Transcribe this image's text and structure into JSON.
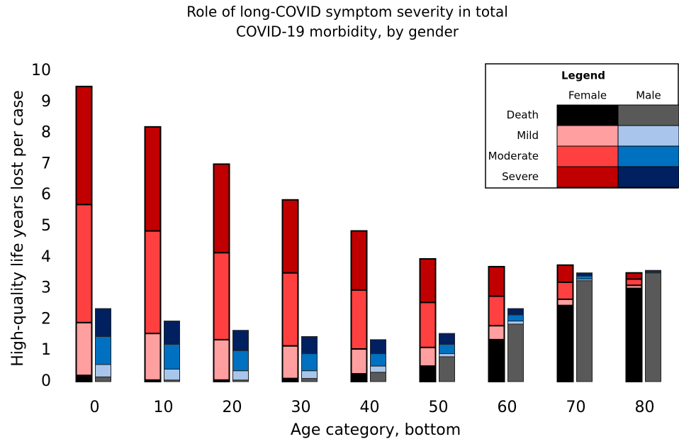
{
  "chart_data": {
    "type": "stacked_bar",
    "title": [
      "Role of long-COVID symptom severity in total",
      "COVID-19 morbidity, by gender"
    ],
    "x_label": "Age category, bottom",
    "y_label": "High-quality life years lost per case",
    "categories": [
      "0",
      "10",
      "20",
      "30",
      "40",
      "50",
      "60",
      "70",
      "80"
    ],
    "ylim": [
      0,
      10
    ],
    "yticks": [
      0,
      1,
      2,
      3,
      4,
      5,
      6,
      7,
      8,
      9,
      10
    ],
    "legend_title": "Legend",
    "stack_names": [
      "Death",
      "Mild",
      "Moderate",
      "Severe"
    ],
    "series": [
      {
        "name": "Female",
        "colors": [
          "#000000",
          "#ff9f9f",
          "#ff4040",
          "#c00000"
        ],
        "values": [
          [
            0.2,
            0.05,
            0.05,
            0.1,
            0.25,
            0.5,
            1.35,
            2.45,
            3.0
          ],
          [
            1.7,
            1.5,
            1.3,
            1.05,
            0.8,
            0.6,
            0.45,
            0.2,
            0.1
          ],
          [
            3.8,
            3.3,
            2.8,
            2.35,
            1.9,
            1.45,
            0.95,
            0.55,
            0.2
          ],
          [
            3.8,
            3.35,
            2.85,
            2.35,
            1.9,
            1.4,
            0.95,
            0.55,
            0.2
          ]
        ]
      },
      {
        "name": "Male",
        "colors": [
          "#595959",
          "#a9c5eb",
          "#0070c0",
          "#002060"
        ],
        "values": [
          [
            0.15,
            0.05,
            0.05,
            0.1,
            0.3,
            0.8,
            1.85,
            3.25,
            3.5
          ],
          [
            0.4,
            0.35,
            0.3,
            0.25,
            0.2,
            0.1,
            0.1,
            0.05,
            0.02
          ],
          [
            0.9,
            0.8,
            0.65,
            0.55,
            0.4,
            0.3,
            0.2,
            0.1,
            0.03
          ],
          [
            0.9,
            0.75,
            0.65,
            0.55,
            0.45,
            0.35,
            0.2,
            0.1,
            0.03
          ]
        ]
      }
    ]
  }
}
